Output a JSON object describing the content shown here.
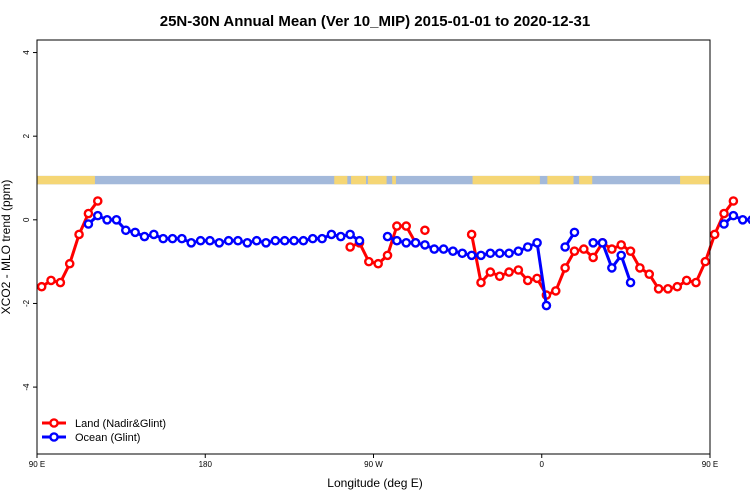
{
  "chart_data": {
    "type": "line",
    "title": "25N-30N Annual Mean (Ver 10_MIP)   2015-01-01 to 2020-12-31",
    "xlabel": "Longitude (deg E)",
    "ylabel": "XCO2 - MLO trend (ppm)",
    "xlim": [
      90,
      450
    ],
    "ylim": [
      -5.6,
      4.3
    ],
    "x_ticks": [
      {
        "value": 90,
        "label": "90 E"
      },
      {
        "value": 180,
        "label": "180"
      },
      {
        "value": 270,
        "label": "90 W"
      },
      {
        "value": 360,
        "label": "0"
      },
      {
        "value": 450,
        "label": "90 E"
      },
      {
        "value": 540,
        "label": "180"
      }
    ],
    "y_ticks": [
      {
        "value": -4,
        "label": "-4"
      },
      {
        "value": -2,
        "label": "-2"
      },
      {
        "value": 0,
        "label": "0"
      },
      {
        "value": 2,
        "label": "2"
      },
      {
        "value": 4,
        "label": "4"
      }
    ],
    "land_strip": {
      "y_range": [
        0.85,
        1.05
      ],
      "ocean_color": "#a3b9da",
      "land_color": "#f5d675",
      "land_segments": [
        [
          90,
          121
        ],
        [
          249,
          256
        ],
        [
          258,
          266
        ],
        [
          267,
          277
        ],
        [
          280,
          282
        ],
        [
          323,
          359
        ],
        [
          363,
          377
        ],
        [
          380,
          387
        ],
        [
          434,
          499
        ],
        [
          528,
          534
        ],
        [
          548,
          569
        ]
      ]
    },
    "legend": {
      "position": "bottom-left"
    },
    "series": [
      {
        "name": "Land (Nadir&Glint)",
        "color": "#ff0000",
        "points": [
          [
            92.5,
            -1.6
          ],
          [
            97.5,
            -1.45
          ],
          [
            102.5,
            -1.5
          ],
          [
            107.5,
            -1.05
          ],
          [
            112.5,
            -0.35
          ],
          [
            117.5,
            0.15
          ],
          [
            122.5,
            0.45
          ],
          null,
          [
            257.5,
            -0.65
          ],
          [
            262.5,
            -0.55
          ],
          [
            267.5,
            -1.0
          ],
          [
            272.5,
            -1.05
          ],
          [
            277.5,
            -0.85
          ],
          [
            282.5,
            -0.15
          ],
          [
            287.5,
            -0.15
          ],
          [
            292.5,
            -0.55
          ],
          null,
          [
            297.5,
            -0.25
          ],
          null,
          [
            322.5,
            -0.35
          ],
          [
            327.5,
            -1.5
          ],
          [
            332.5,
            -1.25
          ],
          [
            337.5,
            -1.35
          ],
          [
            342.5,
            -1.25
          ],
          [
            347.5,
            -1.2
          ],
          [
            352.5,
            -1.45
          ],
          [
            357.5,
            -1.4
          ],
          [
            362.5,
            -1.8
          ],
          [
            367.5,
            -1.7
          ],
          [
            372.5,
            -1.15
          ],
          [
            377.5,
            -0.75
          ],
          [
            382.5,
            -0.7
          ],
          [
            387.5,
            -0.9
          ],
          [
            392.5,
            -0.55
          ],
          [
            397.5,
            -0.7
          ],
          [
            402.5,
            -0.6
          ],
          [
            407.5,
            -0.75
          ],
          [
            412.5,
            -1.15
          ],
          [
            417.5,
            -1.3
          ],
          [
            422.5,
            -1.65
          ],
          [
            427.5,
            -1.65
          ],
          [
            432.5,
            -1.6
          ],
          [
            437.5,
            -1.45
          ],
          [
            442.5,
            -1.5
          ],
          [
            447.5,
            -1.0
          ],
          [
            452.5,
            -0.35
          ],
          [
            457.5,
            0.15
          ],
          [
            462.5,
            0.45
          ]
        ]
      },
      {
        "name": "Ocean (Glint)",
        "color": "#0000ff",
        "points": [
          [
            117.5,
            -0.1
          ],
          [
            122.5,
            0.1
          ],
          [
            127.5,
            0.0
          ],
          [
            132.5,
            0.0
          ],
          [
            137.5,
            -0.25
          ],
          [
            142.5,
            -0.3
          ],
          [
            147.5,
            -0.4
          ],
          [
            152.5,
            -0.35
          ],
          [
            157.5,
            -0.45
          ],
          [
            162.5,
            -0.45
          ],
          [
            167.5,
            -0.45
          ],
          [
            172.5,
            -0.55
          ],
          [
            177.5,
            -0.5
          ],
          [
            182.5,
            -0.5
          ],
          [
            187.5,
            -0.55
          ],
          [
            192.5,
            -0.5
          ],
          [
            197.5,
            -0.5
          ],
          [
            202.5,
            -0.55
          ],
          [
            207.5,
            -0.5
          ],
          [
            212.5,
            -0.55
          ],
          [
            217.5,
            -0.5
          ],
          [
            222.5,
            -0.5
          ],
          [
            227.5,
            -0.5
          ],
          [
            232.5,
            -0.5
          ],
          [
            237.5,
            -0.45
          ],
          [
            242.5,
            -0.45
          ],
          [
            247.5,
            -0.35
          ],
          [
            252.5,
            -0.4
          ],
          [
            257.5,
            -0.35
          ],
          [
            262.5,
            -0.5
          ],
          null,
          [
            277.5,
            -0.4
          ],
          [
            282.5,
            -0.5
          ],
          [
            287.5,
            -0.55
          ],
          [
            292.5,
            -0.55
          ],
          [
            297.5,
            -0.6
          ],
          [
            302.5,
            -0.7
          ],
          [
            307.5,
            -0.7
          ],
          [
            312.5,
            -0.75
          ],
          [
            317.5,
            -0.8
          ],
          [
            322.5,
            -0.85
          ],
          [
            327.5,
            -0.85
          ],
          [
            332.5,
            -0.8
          ],
          [
            337.5,
            -0.8
          ],
          [
            342.5,
            -0.8
          ],
          [
            347.5,
            -0.75
          ],
          [
            352.5,
            -0.65
          ],
          [
            357.5,
            -0.55
          ],
          [
            362.5,
            -2.05
          ],
          null,
          [
            372.5,
            -0.65
          ],
          [
            377.5,
            -0.3
          ],
          null,
          [
            387.5,
            -0.55
          ],
          [
            392.5,
            -0.55
          ],
          [
            397.5,
            -1.15
          ],
          [
            402.5,
            -0.85
          ],
          [
            407.5,
            -1.5
          ],
          null,
          [
            457.5,
            -0.1
          ],
          [
            462.5,
            0.1
          ],
          [
            467.5,
            0.0
          ],
          [
            472.5,
            0.0
          ],
          [
            477.5,
            -0.25
          ],
          [
            482.5,
            -0.3
          ],
          [
            487.5,
            -0.4
          ],
          [
            492.5,
            -0.35
          ],
          [
            497.5,
            -0.45
          ],
          [
            502.5,
            -0.45
          ],
          [
            507.5,
            -0.45
          ],
          [
            512.5,
            -0.55
          ],
          [
            517.5,
            -0.5
          ],
          [
            522.5,
            -0.5
          ]
        ]
      }
    ]
  }
}
